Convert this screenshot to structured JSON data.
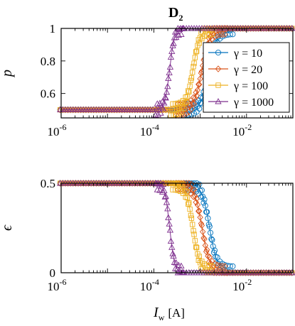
{
  "figure": {
    "title": "D",
    "title_sub": "2",
    "xlabel": "I",
    "xlabel_sub": "w",
    "xlabel_unit": "[A]",
    "x_ticks": [
      {
        "base": "10",
        "exp": "-6"
      },
      {
        "base": "10",
        "exp": "-4"
      },
      {
        "base": "10",
        "exp": "-2"
      }
    ]
  },
  "chart_data": [
    {
      "type": "line",
      "panel": "top",
      "ylabel": "p",
      "xscale": "log",
      "xlim": [
        1e-06,
        0.1
      ],
      "ylim": [
        0.45,
        1.0
      ],
      "y_ticks": [
        "0.6",
        "0.8",
        "1"
      ],
      "legend": {
        "placement": "top-right",
        "entries": [
          "γ = 10",
          "γ = 20",
          "γ = 100",
          "γ = 1000"
        ]
      },
      "series": [
        {
          "name": "γ = 10",
          "color": "#0072bd",
          "marker": "circle",
          "midpoint_A": 0.0016,
          "width_decades": 0.34,
          "start": 0.5,
          "end": 1.0
        },
        {
          "name": "γ = 20",
          "color": "#d95319",
          "marker": "diamond",
          "midpoint_A": 0.0011,
          "width_decades": 0.34,
          "start": 0.5,
          "end": 1.0
        },
        {
          "name": "γ = 100",
          "color": "#edb120",
          "marker": "square",
          "midpoint_A": 0.0007,
          "width_decades": 0.3,
          "start": 0.5,
          "end": 1.0
        },
        {
          "name": "γ = 1000",
          "color": "#7e2f8e",
          "marker": "triangle",
          "midpoint_A": 0.00022,
          "width_decades": 0.2,
          "start": 0.5,
          "end": 1.0
        }
      ]
    },
    {
      "type": "line",
      "panel": "bottom",
      "ylabel": "ϵ",
      "xscale": "log",
      "xlim": [
        1e-06,
        0.1
      ],
      "ylim": [
        0,
        0.5
      ],
      "y_ticks": [
        "0",
        "0.5"
      ],
      "series": [
        {
          "name": "γ = 10",
          "color": "#0072bd",
          "marker": "circle",
          "midpoint_A": 0.0016,
          "width_decades": 0.34,
          "start": 0.5,
          "end": 0.0
        },
        {
          "name": "γ = 20",
          "color": "#d95319",
          "marker": "diamond",
          "midpoint_A": 0.0011,
          "width_decades": 0.34,
          "start": 0.5,
          "end": 0.0
        },
        {
          "name": "γ = 100",
          "color": "#edb120",
          "marker": "square",
          "midpoint_A": 0.0007,
          "width_decades": 0.3,
          "start": 0.5,
          "end": 0.0
        },
        {
          "name": "γ = 1000",
          "color": "#7e2f8e",
          "marker": "triangle",
          "midpoint_A": 0.00022,
          "width_decades": 0.2,
          "start": 0.5,
          "end": 0.0
        }
      ]
    }
  ]
}
